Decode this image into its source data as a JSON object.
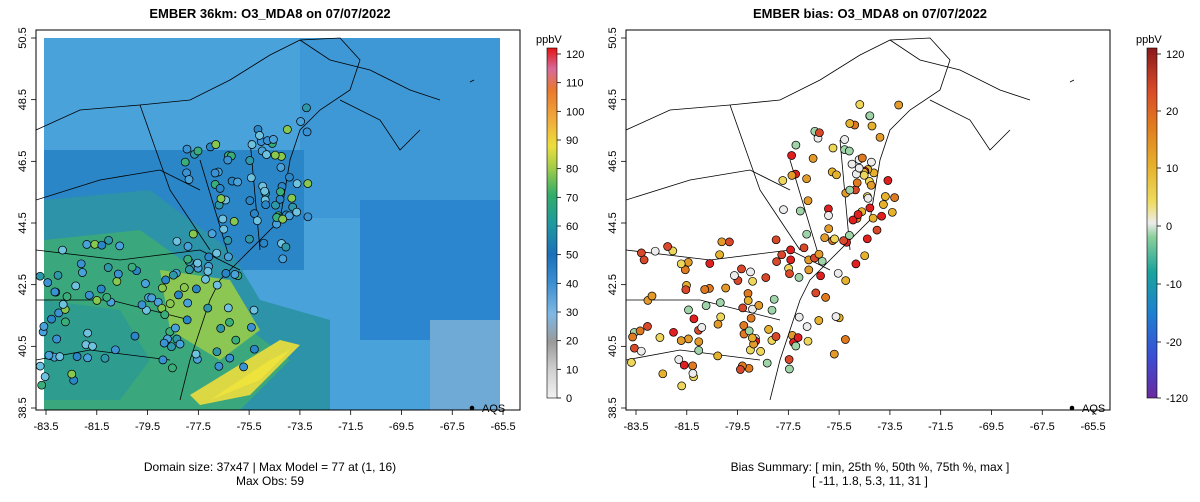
{
  "left": {
    "title": "EMBER 36km: O3_MDA8 on 07/07/2022",
    "colorbar_unit": "ppbV",
    "colorbar_ticks": [
      "0",
      "10",
      "20",
      "30",
      "40",
      "50",
      "60",
      "70",
      "80",
      "90",
      "100",
      "110",
      "120"
    ],
    "legend_label": "AQS",
    "footer_line1": "Domain size: 37x47 | Max Model = 77 at (1, 16)",
    "footer_line2": "Max Obs: 59"
  },
  "right": {
    "title": "EMBER bias: O3_MDA8 on 07/07/2022",
    "colorbar_unit": "ppbV",
    "colorbar_ticks": [
      "120",
      "20",
      "10",
      "0",
      "-10",
      "-20",
      "-120"
    ],
    "legend_label": "AQS",
    "footer_line1": "Bias Summary: [ min, 25th %, 50th %, 75th %, max ]",
    "footer_line2": "[ -11,   1.8,   5.3,   11,   31 ]"
  },
  "axes": {
    "x_ticks": [
      "-83.5",
      "-81.5",
      "-79.5",
      "-77.5",
      "-75.5",
      "-73.5",
      "-71.5",
      "-69.5",
      "-67.5",
      "-65.5"
    ],
    "y_ticks": [
      "38.5",
      "40.5",
      "42.5",
      "44.5",
      "46.5",
      "48.5",
      "50.5"
    ],
    "lon_range": [
      -84.3,
      -64.6
    ],
    "lat_range": [
      38.3,
      50.6
    ]
  },
  "colors": {
    "model_scale": [
      "#e6e6e6",
      "#a8a8a8",
      "#6aaedc",
      "#3d8fd0",
      "#1b6fb5",
      "#1e9aa0",
      "#3fb55f",
      "#9ccc45",
      "#e6dc3a",
      "#f0a23a",
      "#e87830",
      "#d8609a",
      "#e01818"
    ],
    "bias_scale": [
      "#7b2fa8",
      "#2f56d8",
      "#1aa89a",
      "#e6e6e6",
      "#e6c23a",
      "#e07820",
      "#e02020"
    ]
  },
  "chart_data": {
    "type": "map",
    "variable": "O3_MDA8",
    "date": "07/07/2022",
    "model_max": 77,
    "model_max_cell": [
      1,
      16
    ],
    "obs_max": 59,
    "domain_size": "37x47",
    "bias_summary": {
      "min": -11,
      "p25": 1.8,
      "p50": 5.3,
      "p75": 11,
      "max": 31
    }
  }
}
